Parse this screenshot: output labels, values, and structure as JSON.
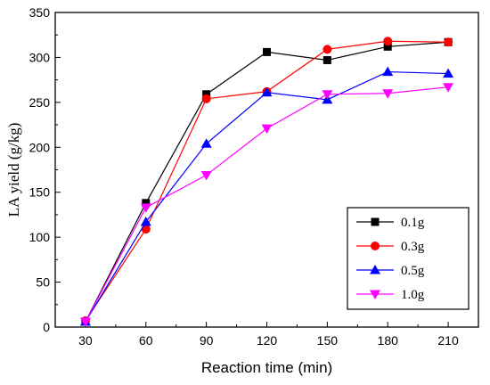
{
  "chart_data": {
    "type": "line",
    "title": "",
    "xlabel": "Reaction time (min)",
    "ylabel": "LA  yield (g/kg)",
    "x": [
      30,
      60,
      90,
      120,
      150,
      180,
      210
    ],
    "xticks": [
      30,
      60,
      90,
      120,
      150,
      180,
      210
    ],
    "xlim": [
      15,
      225
    ],
    "yticks": [
      0,
      50,
      100,
      150,
      200,
      250,
      300,
      350
    ],
    "ylim": [
      0,
      350
    ],
    "grid": false,
    "legend_position": "lower-right",
    "series": [
      {
        "name": "0.1g",
        "color": "#000000",
        "marker": "square",
        "values": [
          6,
          138,
          259,
          306,
          297,
          312,
          317
        ]
      },
      {
        "name": "0.3g",
        "color": "#ff0000",
        "marker": "circle",
        "values": [
          7,
          109,
          254,
          262,
          309,
          318,
          317
        ]
      },
      {
        "name": "0.5g",
        "color": "#0000ff",
        "marker": "triangle-up",
        "values": [
          6,
          117,
          204,
          261,
          253,
          284,
          282
        ]
      },
      {
        "name": "1.0g",
        "color": "#ff00ff",
        "marker": "triangle-down",
        "values": [
          6,
          133,
          169,
          221,
          259,
          260,
          267
        ]
      }
    ]
  }
}
